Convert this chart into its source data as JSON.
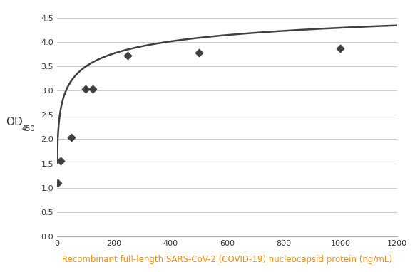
{
  "scatter_x": [
    3.125,
    12.5,
    50,
    100,
    125,
    250,
    500,
    1000
  ],
  "scatter_y": [
    1.1,
    1.55,
    2.04,
    3.03,
    3.03,
    3.72,
    3.78,
    3.87
  ],
  "xlim": [
    0,
    1200
  ],
  "ylim": [
    0,
    4.7
  ],
  "xticks": [
    0,
    200,
    400,
    600,
    800,
    1000,
    1200
  ],
  "yticks": [
    0,
    0.5,
    1.0,
    1.5,
    2.0,
    2.5,
    3.0,
    3.5,
    4.0,
    4.5
  ],
  "ylabel_main": "OD",
  "ylabel_sub": "450",
  "xlabel": "Recombinant full-length SARS-CoV-2 (COVID-19) nucleocapsid protein (ng/mL)",
  "xlabel_color": "#FF8C00",
  "marker_color": "#404040",
  "line_color": "#404040",
  "curve_asymptote": 4.35,
  "background_color": "#ffffff",
  "grid_color": "#cccccc"
}
